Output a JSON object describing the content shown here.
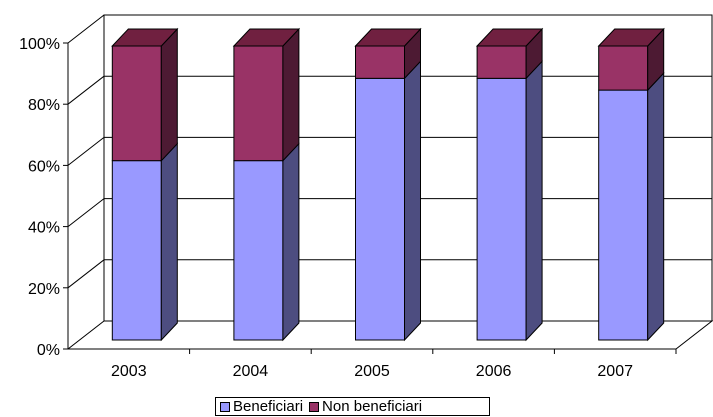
{
  "chart_data": {
    "type": "bar",
    "stacked": "percent",
    "three_d": true,
    "categories": [
      "2003",
      "2004",
      "2005",
      "2006",
      "2007"
    ],
    "series": [
      {
        "name": "Beneficiari",
        "values": [
          61,
          61,
          89,
          89,
          85
        ]
      },
      {
        "name": "Non beneficiari",
        "values": [
          39,
          39,
          11,
          11,
          15
        ]
      }
    ],
    "yticks": [
      "0%",
      "20%",
      "40%",
      "60%",
      "80%",
      "100%"
    ],
    "ylim": [
      0,
      100
    ],
    "grid": true,
    "legend_position": "bottom",
    "colors": {
      "Beneficiari": "#9999ff",
      "Non beneficiari": "#993366"
    }
  }
}
